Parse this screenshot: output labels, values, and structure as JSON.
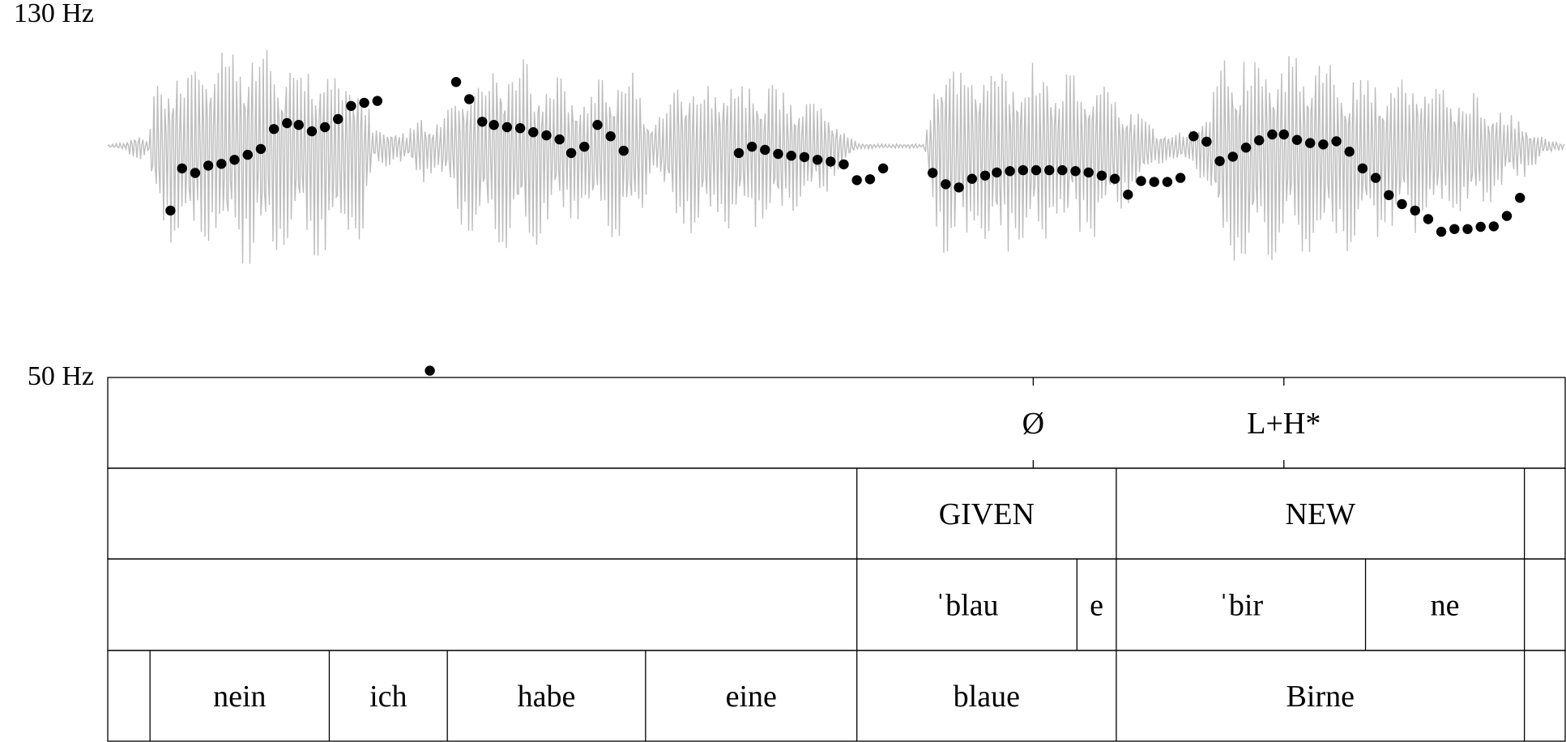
{
  "chart_data": {
    "type": "scatter",
    "title": "",
    "xlabel": "",
    "ylabel": "",
    "y_axis_labels": [
      "130 Hz",
      "50 Hz"
    ],
    "ylim": [
      50,
      130
    ],
    "x_unit": "position along utterance (0–1)",
    "waveform": {
      "color": "#bdbdbd"
    },
    "pitch_points": [
      [
        0.043,
        86.0
      ],
      [
        0.051,
        95.3
      ],
      [
        0.06,
        94.3
      ],
      [
        0.069,
        95.9
      ],
      [
        0.078,
        96.3
      ],
      [
        0.087,
        97.2
      ],
      [
        0.096,
        98.3
      ],
      [
        0.105,
        99.6
      ],
      [
        0.114,
        104.0
      ],
      [
        0.123,
        105.3
      ],
      [
        0.131,
        104.9
      ],
      [
        0.14,
        103.5
      ],
      [
        0.149,
        104.4
      ],
      [
        0.158,
        106.2
      ],
      [
        0.167,
        109.1
      ],
      [
        0.176,
        109.8
      ],
      [
        0.185,
        110.2
      ],
      [
        0.221,
        50.6
      ],
      [
        0.239,
        114.4
      ],
      [
        0.248,
        110.6
      ],
      [
        0.257,
        105.6
      ],
      [
        0.265,
        104.9
      ],
      [
        0.274,
        104.4
      ],
      [
        0.283,
        104.2
      ],
      [
        0.292,
        103.3
      ],
      [
        0.301,
        102.6
      ],
      [
        0.31,
        101.7
      ],
      [
        0.318,
        98.7
      ],
      [
        0.327,
        100.1
      ],
      [
        0.336,
        104.9
      ],
      [
        0.345,
        102.4
      ],
      [
        0.354,
        99.2
      ],
      [
        0.433,
        98.7
      ],
      [
        0.442,
        100.1
      ],
      [
        0.451,
        99.4
      ],
      [
        0.46,
        98.5
      ],
      [
        0.469,
        98.1
      ],
      [
        0.478,
        97.8
      ],
      [
        0.487,
        97.2
      ],
      [
        0.496,
        96.8
      ],
      [
        0.505,
        96.2
      ],
      [
        0.514,
        92.7
      ],
      [
        0.523,
        92.9
      ],
      [
        0.532,
        95.3
      ],
      [
        0.566,
        94.3
      ],
      [
        0.575,
        91.8
      ],
      [
        0.584,
        91.1
      ],
      [
        0.593,
        93.0
      ],
      [
        0.602,
        93.7
      ],
      [
        0.61,
        94.4
      ],
      [
        0.619,
        94.7
      ],
      [
        0.628,
        94.9
      ],
      [
        0.637,
        94.9
      ],
      [
        0.646,
        94.9
      ],
      [
        0.655,
        94.9
      ],
      [
        0.664,
        94.7
      ],
      [
        0.673,
        94.4
      ],
      [
        0.682,
        93.7
      ],
      [
        0.691,
        93.0
      ],
      [
        0.7,
        89.5
      ],
      [
        0.709,
        92.5
      ],
      [
        0.718,
        92.3
      ],
      [
        0.727,
        92.3
      ],
      [
        0.736,
        93.2
      ],
      [
        0.745,
        102.4
      ],
      [
        0.754,
        101.2
      ],
      [
        0.763,
        96.9
      ],
      [
        0.772,
        97.9
      ],
      [
        0.781,
        99.9
      ],
      [
        0.79,
        101.5
      ],
      [
        0.799,
        102.8
      ],
      [
        0.807,
        102.8
      ],
      [
        0.816,
        101.6
      ],
      [
        0.825,
        100.9
      ],
      [
        0.834,
        100.6
      ],
      [
        0.843,
        101.3
      ],
      [
        0.852,
        99.0
      ],
      [
        0.861,
        95.3
      ],
      [
        0.87,
        93.2
      ],
      [
        0.879,
        89.4
      ],
      [
        0.888,
        87.4
      ],
      [
        0.897,
        86.0
      ],
      [
        0.906,
        84.1
      ],
      [
        0.915,
        81.3
      ],
      [
        0.924,
        81.9
      ],
      [
        0.933,
        81.9
      ],
      [
        0.942,
        82.4
      ],
      [
        0.951,
        82.5
      ],
      [
        0.96,
        84.8
      ],
      [
        0.969,
        88.8
      ]
    ],
    "tiers": [
      {
        "points": [
          {
            "x": 0.635,
            "label": "Ø"
          },
          {
            "x": 0.807,
            "label": "L+H*"
          }
        ]
      },
      {
        "intervals": [
          {
            "x0": 0.0,
            "x1": 0.514,
            "label": ""
          },
          {
            "x0": 0.514,
            "x1": 0.692,
            "label": "GIVEN"
          },
          {
            "x0": 0.692,
            "x1": 0.972,
            "label": "NEW"
          },
          {
            "x0": 0.972,
            "x1": 1.0,
            "label": ""
          }
        ]
      },
      {
        "intervals": [
          {
            "x0": 0.0,
            "x1": 0.514,
            "label": ""
          },
          {
            "x0": 0.514,
            "x1": 0.665,
            "label": "ˈblau"
          },
          {
            "x0": 0.665,
            "x1": 0.692,
            "label": "e"
          },
          {
            "x0": 0.692,
            "x1": 0.863,
            "label": "ˈbir"
          },
          {
            "x0": 0.863,
            "x1": 0.972,
            "label": "ne"
          },
          {
            "x0": 0.972,
            "x1": 1.0,
            "label": ""
          }
        ]
      },
      {
        "intervals": [
          {
            "x0": 0.0,
            "x1": 0.029,
            "label": ""
          },
          {
            "x0": 0.029,
            "x1": 0.152,
            "label": "nein"
          },
          {
            "x0": 0.152,
            "x1": 0.233,
            "label": "ich"
          },
          {
            "x0": 0.233,
            "x1": 0.369,
            "label": "habe"
          },
          {
            "x0": 0.369,
            "x1": 0.514,
            "label": "eine"
          },
          {
            "x0": 0.514,
            "x1": 0.692,
            "label": "blaue"
          },
          {
            "x0": 0.692,
            "x1": 0.972,
            "label": "Birne"
          },
          {
            "x0": 0.972,
            "x1": 1.0,
            "label": ""
          }
        ]
      }
    ]
  }
}
